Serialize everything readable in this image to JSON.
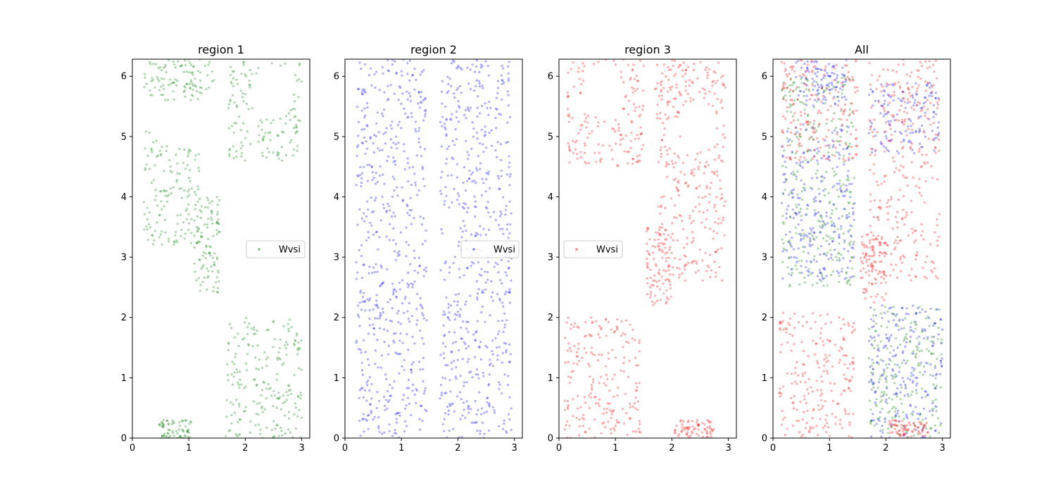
{
  "chart_data": [
    {
      "type": "scatter",
      "title": "region 1",
      "xlim": [
        0,
        3.14159
      ],
      "ylim": [
        0,
        6.28318
      ],
      "xticks": [
        "0",
        "1",
        "2",
        "3"
      ],
      "yticks": [
        "0",
        "1",
        "2",
        "3",
        "4",
        "5",
        "6"
      ],
      "legend": {
        "entries": [
          "Wvsi"
        ],
        "placement": "center-right"
      },
      "grid": false,
      "series": [
        {
          "name": "Wvsi",
          "color": "#008000",
          "clusters": [
            {
              "x": [
                0.2,
                1.45
              ],
              "y": [
                5.6,
                6.28
              ]
            },
            {
              "x": [
                0.2,
                1.2
              ],
              "y": [
                3.2,
                5.1
              ]
            },
            {
              "x": [
                1.1,
                1.55
              ],
              "y": [
                2.4,
                4.0
              ]
            },
            {
              "x": [
                1.7,
                3.0
              ],
              "y": [
                4.6,
                6.28
              ]
            },
            {
              "x": [
                1.65,
                3.0
              ],
              "y": [
                0.0,
                2.0
              ]
            },
            {
              "x": [
                0.45,
                1.05
              ],
              "y": [
                0.0,
                0.3
              ]
            }
          ],
          "holes": [
            {
              "cx": 0.8,
              "cy": 5.2,
              "rx": 0.35,
              "ry": 0.4
            },
            {
              "cx": 2.5,
              "cy": 5.75,
              "rx": 0.35,
              "ry": 0.45
            }
          ]
        }
      ]
    },
    {
      "type": "scatter",
      "title": "region 2",
      "xlim": [
        0,
        3.14159
      ],
      "ylim": [
        0,
        6.28318
      ],
      "xticks": [
        "0",
        "1",
        "2",
        "3"
      ],
      "yticks": [
        "0",
        "1",
        "2",
        "3",
        "4",
        "5",
        "6"
      ],
      "legend": {
        "entries": [
          "Wvsi"
        ],
        "placement": "center-right"
      },
      "grid": false,
      "series": [
        {
          "name": "Wvsi",
          "color": "#0000ff",
          "clusters": [
            {
              "x": [
                0.2,
                1.45
              ],
              "y": [
                2.4,
                6.28
              ]
            },
            {
              "x": [
                1.68,
                2.95
              ],
              "y": [
                2.4,
                6.28
              ]
            },
            {
              "x": [
                0.2,
                1.45
              ],
              "y": [
                0.0,
                2.4
              ]
            },
            {
              "x": [
                1.68,
                2.95
              ],
              "y": [
                0.0,
                2.4
              ]
            }
          ],
          "holes": []
        }
      ]
    },
    {
      "type": "scatter",
      "title": "region 3",
      "xlim": [
        0,
        3.14159
      ],
      "ylim": [
        0,
        6.28318
      ],
      "xticks": [
        "0",
        "1",
        "2",
        "3"
      ],
      "yticks": [
        "0",
        "1",
        "2",
        "3",
        "4",
        "5",
        "6"
      ],
      "legend": {
        "entries": [
          "Wvsi"
        ],
        "placement": "center-left"
      },
      "grid": false,
      "series": [
        {
          "name": "Wvsi",
          "color": "#ff0000",
          "clusters": [
            {
              "x": [
                0.15,
                1.5
              ],
              "y": [
                4.5,
                6.28
              ]
            },
            {
              "x": [
                1.7,
                2.95
              ],
              "y": [
                5.3,
                6.28
              ]
            },
            {
              "x": [
                1.75,
                2.95
              ],
              "y": [
                2.6,
                5.3
              ]
            },
            {
              "x": [
                1.55,
                2.0
              ],
              "y": [
                2.2,
                3.5
              ]
            },
            {
              "x": [
                0.1,
                1.45
              ],
              "y": [
                0.0,
                2.0
              ]
            },
            {
              "x": [
                2.05,
                2.75
              ],
              "y": [
                0.0,
                0.3
              ]
            }
          ],
          "holes": [
            {
              "cx": 0.8,
              "cy": 5.75,
              "rx": 0.35,
              "ry": 0.45
            },
            {
              "cx": 2.45,
              "cy": 5.2,
              "rx": 0.35,
              "ry": 0.4
            }
          ]
        }
      ]
    },
    {
      "type": "scatter",
      "title": "All",
      "xlim": [
        0,
        3.14159
      ],
      "ylim": [
        0,
        6.28318
      ],
      "xticks": [
        "0",
        "1",
        "2",
        "3"
      ],
      "yticks": [
        "0",
        "1",
        "2",
        "3",
        "4",
        "5",
        "6"
      ],
      "grid": false,
      "series": [
        {
          "color": "#008000",
          "clusters": [
            {
              "x": [
                0.15,
                1.45
              ],
              "y": [
                2.5,
                6.0
              ]
            },
            {
              "x": [
                1.7,
                3.0
              ],
              "y": [
                0.0,
                2.2
              ]
            }
          ],
          "holes": []
        },
        {
          "color": "#0000ff",
          "clusters": [
            {
              "x": [
                0.15,
                1.45
              ],
              "y": [
                2.6,
                5.2
              ]
            },
            {
              "x": [
                0.4,
                1.3
              ],
              "y": [
                5.5,
                6.28
              ]
            },
            {
              "x": [
                1.7,
                2.95
              ],
              "y": [
                4.7,
                5.9
              ]
            },
            {
              "x": [
                1.7,
                3.0
              ],
              "y": [
                0.0,
                2.2
              ]
            }
          ],
          "holes": []
        },
        {
          "color": "#ff0000",
          "clusters": [
            {
              "x": [
                0.15,
                1.5
              ],
              "y": [
                4.6,
                6.28
              ]
            },
            {
              "x": [
                1.7,
                2.95
              ],
              "y": [
                2.6,
                6.28
              ]
            },
            {
              "x": [
                0.1,
                1.45
              ],
              "y": [
                0.0,
                2.1
              ]
            },
            {
              "x": [
                1.55,
                2.0
              ],
              "y": [
                2.2,
                3.4
              ]
            },
            {
              "x": [
                2.05,
                2.75
              ],
              "y": [
                0.0,
                0.3
              ]
            }
          ],
          "holes": []
        }
      ]
    }
  ]
}
